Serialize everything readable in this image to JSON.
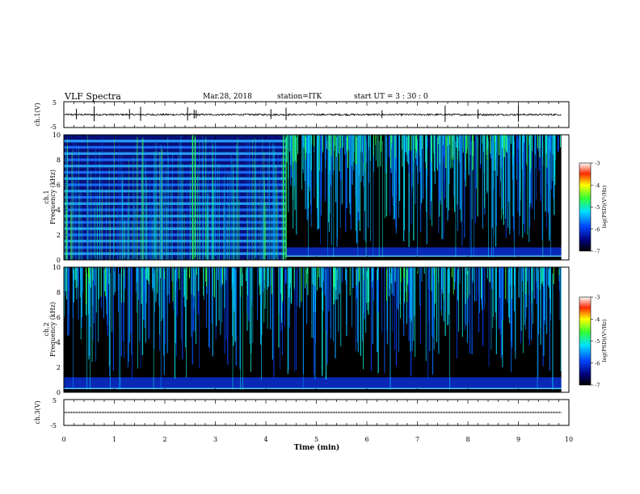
{
  "header": {
    "title": "VLF Spectra",
    "date": "Mar.28, 2018",
    "station": "station=ITK",
    "start_ut": "start  UT =   3 : 30 : 0"
  },
  "chart_data": [
    {
      "type": "line",
      "panel": "ch1-waveform",
      "ylabel": "ch.1(V)",
      "ylim": [
        -5,
        5
      ],
      "yticks": [
        "5",
        "-5"
      ],
      "xlim": [
        0,
        10
      ],
      "baseline": 0,
      "spike_times_min": [
        0.25,
        0.6,
        1.3,
        1.52,
        2.45,
        2.58,
        2.62,
        4.1,
        4.4,
        6.3,
        7.55,
        8.2,
        9.0
      ]
    },
    {
      "type": "heatmap",
      "panel": "ch1-spectrogram",
      "ylabel": "ch.1\nFrequency (kHz)",
      "ylim": [
        0,
        10
      ],
      "yticks": [
        "0",
        "2",
        "4",
        "6",
        "8",
        "10"
      ],
      "xlim": [
        0,
        10
      ],
      "data_end_min": 9.85,
      "band_structure_end_min": 4.4,
      "harmonic_lines_khz": [
        0.5,
        1.0,
        1.5,
        2.0,
        2.5,
        3.0,
        3.5,
        4.0,
        4.5,
        5.0,
        5.5,
        6.0,
        6.5,
        7.0,
        7.5,
        8.0,
        8.5,
        9.0,
        9.5
      ],
      "low_band_khz": [
        0.3,
        1.0
      ],
      "colorbar": {
        "label": "log(PSD)(V²/Hz)",
        "range": [
          -7,
          -3
        ],
        "ticks": [
          "-3",
          "-4",
          "-5",
          "-6",
          "-7"
        ]
      }
    },
    {
      "type": "heatmap",
      "panel": "ch2-spectrogram",
      "ylabel": "ch.2\nFrequency (kHz)",
      "ylim": [
        0,
        10
      ],
      "yticks": [
        "0",
        "2",
        "4",
        "6",
        "8",
        "10"
      ],
      "xlim": [
        0,
        10
      ],
      "data_end_min": 9.85,
      "low_band_khz": [
        0.3,
        1.2
      ],
      "colorbar": {
        "label": "log(PSD)(V²/Hz)",
        "range": [
          -7,
          -3
        ],
        "ticks": [
          "-3",
          "-4",
          "-5",
          "-6",
          "-7"
        ]
      }
    },
    {
      "type": "line",
      "panel": "ch3-waveform",
      "ylabel": "ch.3(V)",
      "ylim": [
        -5,
        5
      ],
      "yticks": [
        "5",
        "-5"
      ],
      "xlim": [
        0,
        10
      ],
      "baseline": 0
    }
  ],
  "xaxis": {
    "label": "Time  (min)",
    "ticks": [
      "0",
      "1",
      "2",
      "3",
      "4",
      "5",
      "6",
      "7",
      "8",
      "9",
      "10"
    ]
  },
  "colors": {
    "background": "#000000",
    "frame": "#000000"
  }
}
